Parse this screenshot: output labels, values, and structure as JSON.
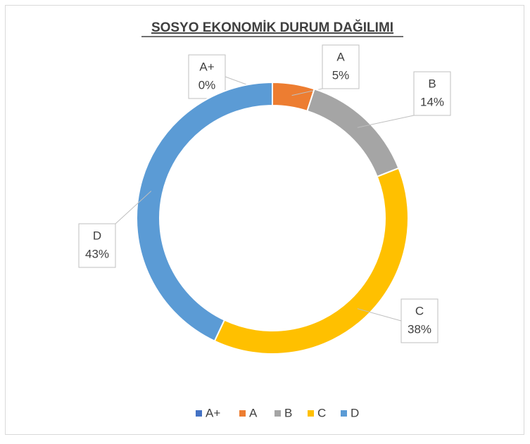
{
  "chart_data": {
    "type": "donut",
    "title": "SOSYO EKONOMİK DURUM DAĞILIMI",
    "categories": [
      "A+",
      "A",
      "B",
      "C",
      "D"
    ],
    "values": [
      0,
      5,
      14,
      38,
      43
    ],
    "value_labels": [
      "0%",
      "5%",
      "14%",
      "38%",
      "43%"
    ],
    "colors": [
      "#4472c4",
      "#ed7d31",
      "#a5a5a5",
      "#ffc000",
      "#5b9bd5"
    ],
    "legend": "bottom"
  }
}
